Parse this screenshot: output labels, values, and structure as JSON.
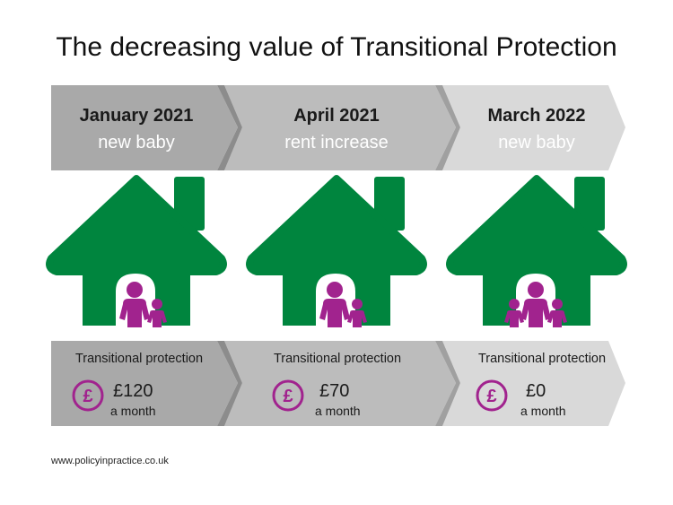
{
  "title": "The decreasing value of Transitional Protection",
  "colors": {
    "stage1": "#a9a9a9",
    "stage2": "#bcbcbc",
    "stage3": "#d9d9d9",
    "house": "#00853e",
    "people": "#a1238e"
  },
  "stages": [
    {
      "date": "January 2021",
      "event": "new baby",
      "protection_label": "Transitional protection",
      "amount": "£120",
      "period": "a month",
      "people_count": 2
    },
    {
      "date": "April 2021",
      "event": "rent increase",
      "protection_label": "Transitional protection",
      "amount": "£70",
      "period": "a month",
      "people_count": 2
    },
    {
      "date": "March 2022",
      "event": "new baby",
      "protection_label": "Transitional protection",
      "amount": "£0",
      "period": "a month",
      "people_count": 3
    }
  ],
  "pound_icon": "pound-coin-icon",
  "footer": "www.policyinpractice.co.uk"
}
